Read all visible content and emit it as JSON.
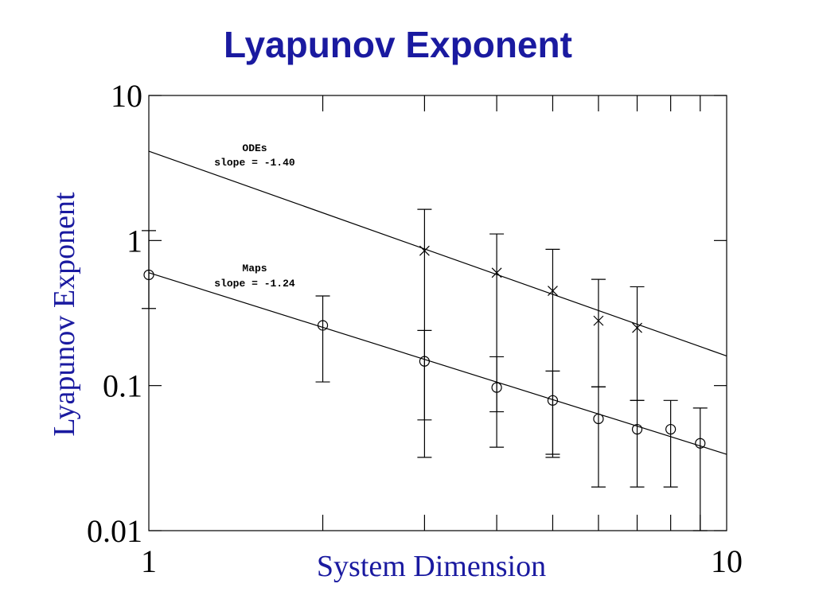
{
  "chart_data": {
    "type": "scatter",
    "title": "Lyapunov Exponent",
    "x_label": "System Dimension",
    "y_label": "Lyapunov Exponent",
    "log_x": true,
    "log_y": true,
    "xlim": [
      1,
      10
    ],
    "ylim": [
      0.01,
      10
    ],
    "xticks": [
      1,
      10
    ],
    "xminor": [
      2,
      3,
      4,
      5,
      6,
      7,
      8,
      9
    ],
    "yticks": [
      0.01,
      0.1,
      1,
      10
    ],
    "series": [
      {
        "name": "ODEs",
        "marker": "x",
        "color": "#000000",
        "annotation": "slope = -1.40",
        "x": [
          3,
          4,
          5,
          6,
          7
        ],
        "values": [
          0.85,
          0.6,
          0.45,
          0.28,
          0.25
        ],
        "lower": [
          0.058,
          0.066,
          0.032,
          0.098,
          0.079
        ],
        "upper": [
          1.64,
          1.11,
          0.87,
          0.54,
          0.48
        ],
        "fit": {
          "x": [
            1,
            10
          ],
          "values": [
            4.13,
            0.16
          ]
        }
      },
      {
        "name": "Maps",
        "marker": "o",
        "color": "#000000",
        "annotation": "slope = -1.24",
        "x": [
          1,
          2,
          3,
          4,
          5,
          6,
          7,
          8,
          9
        ],
        "values": [
          0.58,
          0.26,
          0.147,
          0.097,
          0.079,
          0.059,
          0.05,
          0.05,
          0.04
        ],
        "lower": [
          0.34,
          0.106,
          0.032,
          0.0376,
          0.0336,
          0.02,
          0.02,
          0.02,
          0.01
        ],
        "upper": [
          1.17,
          0.415,
          0.24,
          0.158,
          0.126,
          0.098,
          0.079,
          0.079,
          0.07
        ],
        "fit": {
          "x": [
            1,
            10
          ],
          "values": [
            0.6,
            0.0336
          ]
        }
      }
    ]
  }
}
